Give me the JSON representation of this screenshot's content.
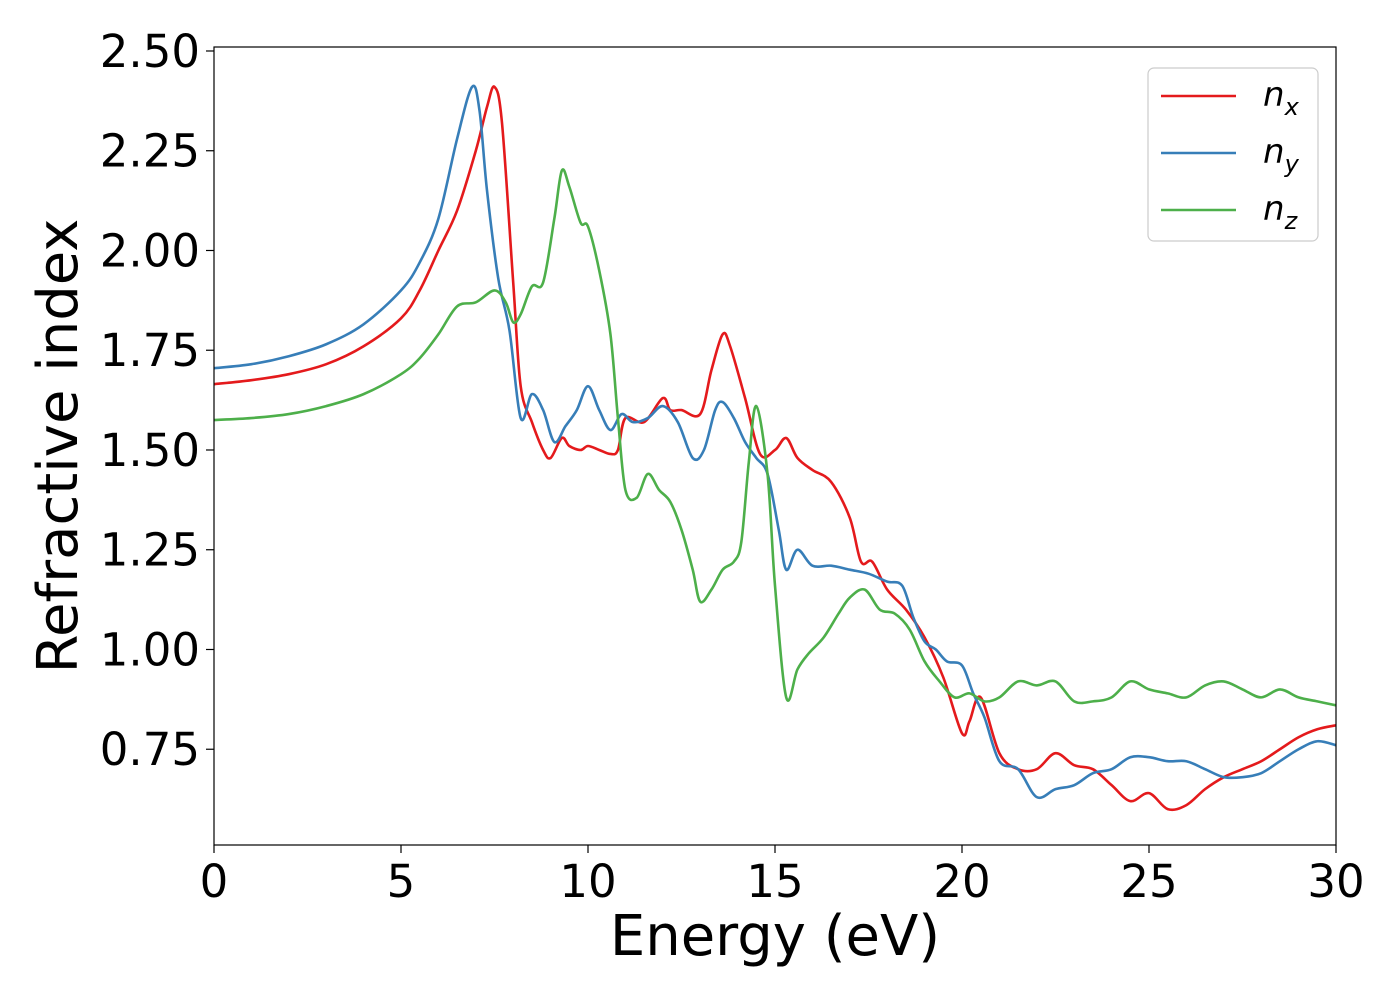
{
  "chart_data": {
    "type": "line",
    "title": "",
    "xlabel": "Energy (eV)",
    "ylabel": "Refractive index",
    "xlim": [
      0,
      30
    ],
    "ylim": [
      0.51,
      2.51
    ],
    "xticks": [
      0,
      5,
      10,
      15,
      20,
      25,
      30
    ],
    "xtick_labels": [
      "0",
      "5",
      "10",
      "15",
      "20",
      "25",
      "30"
    ],
    "yticks": [
      0.75,
      1.0,
      1.25,
      1.5,
      1.75,
      2.0,
      2.25,
      2.5
    ],
    "ytick_labels": [
      "0.75",
      "1.00",
      "1.25",
      "1.50",
      "1.75",
      "2.00",
      "2.25",
      "2.50"
    ],
    "grid": false,
    "legend_position": "top-right",
    "series": [
      {
        "name": "n_x",
        "legend_base": "n",
        "legend_sub": "x",
        "color": "#e41a1c",
        "x": [
          0,
          1,
          2,
          3,
          4,
          5,
          5.5,
          6,
          6.5,
          7,
          7.3,
          7.5,
          7.7,
          8,
          8.2,
          8.5,
          8.8,
          9,
          9.3,
          9.5,
          9.8,
          10,
          10.3,
          10.6,
          10.8,
          11,
          11.5,
          12,
          12.2,
          12.5,
          13,
          13.3,
          13.6,
          13.8,
          14.2,
          14.6,
          15,
          15.3,
          15.6,
          16,
          16.5,
          17,
          17.3,
          17.6,
          18,
          18.5,
          19,
          19.5,
          20,
          20.2,
          20.5,
          21,
          21.5,
          22,
          22.5,
          23,
          23.5,
          24,
          24.5,
          25,
          25.5,
          26,
          26.5,
          27,
          27.5,
          28,
          28.5,
          29,
          29.5,
          30
        ],
        "y": [
          1.665,
          1.675,
          1.69,
          1.715,
          1.76,
          1.83,
          1.9,
          2.0,
          2.1,
          2.25,
          2.36,
          2.41,
          2.32,
          1.92,
          1.66,
          1.57,
          1.5,
          1.48,
          1.53,
          1.51,
          1.5,
          1.51,
          1.5,
          1.49,
          1.5,
          1.58,
          1.57,
          1.63,
          1.6,
          1.6,
          1.59,
          1.7,
          1.79,
          1.76,
          1.63,
          1.49,
          1.5,
          1.53,
          1.48,
          1.45,
          1.42,
          1.33,
          1.22,
          1.22,
          1.15,
          1.1,
          1.03,
          0.93,
          0.79,
          0.82,
          0.88,
          0.74,
          0.7,
          0.7,
          0.74,
          0.71,
          0.7,
          0.66,
          0.62,
          0.64,
          0.6,
          0.61,
          0.65,
          0.68,
          0.7,
          0.72,
          0.75,
          0.78,
          0.8,
          0.81
        ]
      },
      {
        "name": "n_y",
        "legend_base": "n",
        "legend_sub": "y",
        "color": "#377eb8",
        "x": [
          0,
          1,
          2,
          3,
          4,
          5,
          5.5,
          6,
          6.5,
          6.9,
          7.1,
          7.3,
          7.6,
          7.9,
          8.2,
          8.5,
          8.8,
          9.1,
          9.4,
          9.7,
          10,
          10.3,
          10.6,
          10.9,
          11.2,
          11.6,
          12,
          12.4,
          12.8,
          13.1,
          13.4,
          13.6,
          13.9,
          14.2,
          14.5,
          14.8,
          15.1,
          15.3,
          15.6,
          16,
          16.5,
          17,
          17.5,
          18,
          18.4,
          18.7,
          19,
          19.3,
          19.6,
          20,
          20.3,
          20.6,
          21,
          21.5,
          22,
          22.5,
          23,
          23.5,
          24,
          24.5,
          25,
          25.5,
          26,
          26.5,
          27,
          27.5,
          28,
          28.5,
          29,
          29.5,
          30
        ],
        "y": [
          1.705,
          1.715,
          1.735,
          1.765,
          1.815,
          1.9,
          1.97,
          2.08,
          2.28,
          2.41,
          2.35,
          2.15,
          1.93,
          1.8,
          1.58,
          1.64,
          1.6,
          1.52,
          1.56,
          1.6,
          1.66,
          1.6,
          1.55,
          1.59,
          1.57,
          1.58,
          1.61,
          1.57,
          1.48,
          1.5,
          1.6,
          1.62,
          1.58,
          1.52,
          1.48,
          1.44,
          1.3,
          1.2,
          1.25,
          1.21,
          1.21,
          1.2,
          1.19,
          1.17,
          1.16,
          1.08,
          1.02,
          1.0,
          0.97,
          0.96,
          0.89,
          0.83,
          0.72,
          0.7,
          0.63,
          0.65,
          0.66,
          0.69,
          0.7,
          0.73,
          0.73,
          0.72,
          0.72,
          0.7,
          0.68,
          0.68,
          0.69,
          0.72,
          0.75,
          0.77,
          0.76
        ]
      },
      {
        "name": "n_z",
        "legend_base": "n",
        "legend_sub": "z",
        "color": "#4daf4a",
        "x": [
          0,
          1,
          2,
          3,
          4,
          5,
          5.5,
          6,
          6.5,
          7,
          7.5,
          7.8,
          8,
          8.2,
          8.5,
          8.8,
          9.1,
          9.3,
          9.5,
          9.8,
          10,
          10.3,
          10.6,
          10.8,
          11,
          11.3,
          11.6,
          11.9,
          12.2,
          12.5,
          12.8,
          13,
          13.3,
          13.6,
          13.9,
          14.1,
          14.3,
          14.5,
          14.8,
          15,
          15.3,
          15.6,
          15.9,
          16.3,
          16.7,
          17,
          17.4,
          17.8,
          18.2,
          18.6,
          19,
          19.4,
          19.8,
          20.2,
          20.6,
          21,
          21.5,
          22,
          22.5,
          23,
          23.5,
          24,
          24.5,
          25,
          25.5,
          26,
          26.5,
          27,
          27.5,
          28,
          28.5,
          29,
          29.5,
          30
        ],
        "y": [
          1.575,
          1.58,
          1.59,
          1.61,
          1.64,
          1.69,
          1.73,
          1.79,
          1.86,
          1.87,
          1.9,
          1.87,
          1.82,
          1.84,
          1.91,
          1.92,
          2.08,
          2.2,
          2.16,
          2.07,
          2.06,
          1.95,
          1.79,
          1.58,
          1.4,
          1.38,
          1.44,
          1.4,
          1.37,
          1.3,
          1.2,
          1.12,
          1.15,
          1.2,
          1.22,
          1.27,
          1.47,
          1.61,
          1.44,
          1.16,
          0.88,
          0.95,
          0.99,
          1.03,
          1.09,
          1.13,
          1.15,
          1.1,
          1.09,
          1.05,
          0.97,
          0.92,
          0.88,
          0.89,
          0.87,
          0.88,
          0.92,
          0.91,
          0.92,
          0.87,
          0.87,
          0.88,
          0.92,
          0.9,
          0.89,
          0.88,
          0.91,
          0.92,
          0.9,
          0.88,
          0.9,
          0.88,
          0.87,
          0.86
        ]
      }
    ]
  }
}
